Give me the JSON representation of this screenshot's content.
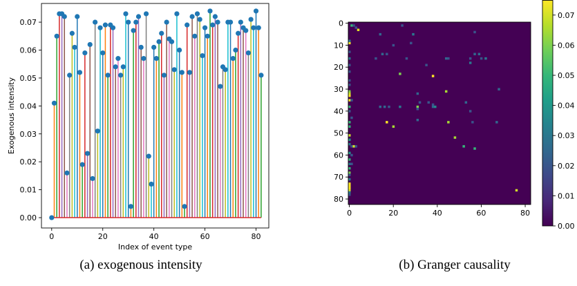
{
  "chart_data": [
    {
      "type": "stem",
      "xlabel": "Index of event type",
      "ylabel": "Exogenous intensity",
      "xlim": [
        -4,
        85
      ],
      "ylim": [
        -0.0037,
        0.0767
      ],
      "xticks": [
        0,
        20,
        40,
        60,
        80
      ],
      "yticks": [
        0.0,
        0.01,
        0.02,
        0.03,
        0.04,
        0.05,
        0.06,
        0.07
      ],
      "ytick_labels": [
        "0.00",
        "0.01",
        "0.02",
        "0.03",
        "0.04",
        "0.05",
        "0.06",
        "0.07"
      ],
      "baseline_color": "#d62728",
      "marker_color": "#1f77b4",
      "stem_colors": [
        "#1f77b4",
        "#ff7f0e",
        "#2ca02c",
        "#d62728",
        "#9467bd",
        "#8c564b",
        "#e377c2",
        "#7f7f7f",
        "#bcbd22",
        "#17becf"
      ],
      "x": [
        0,
        1,
        2,
        3,
        4,
        5,
        6,
        7,
        8,
        9,
        10,
        11,
        12,
        13,
        14,
        15,
        16,
        17,
        18,
        19,
        20,
        21,
        22,
        23,
        24,
        25,
        26,
        27,
        28,
        29,
        30,
        31,
        32,
        33,
        34,
        35,
        36,
        37,
        38,
        39,
        40,
        41,
        42,
        43,
        44,
        45,
        46,
        47,
        48,
        49,
        50,
        51,
        52,
        53,
        54,
        55,
        56,
        57,
        58,
        59,
        60,
        61,
        62,
        63,
        64,
        65,
        66,
        67,
        68,
        69,
        70,
        71,
        72,
        73,
        74,
        75,
        76,
        77,
        78,
        79,
        80,
        81,
        82
      ],
      "values": [
        0.0,
        0.041,
        0.065,
        0.073,
        0.073,
        0.072,
        0.016,
        0.051,
        0.066,
        0.061,
        0.072,
        0.052,
        0.019,
        0.059,
        0.023,
        0.062,
        0.014,
        0.07,
        0.031,
        0.068,
        0.059,
        0.069,
        0.051,
        0.069,
        0.068,
        0.054,
        0.057,
        0.051,
        0.054,
        0.073,
        0.07,
        0.004,
        0.067,
        0.07,
        0.072,
        0.061,
        0.057,
        0.073,
        0.022,
        0.012,
        0.061,
        0.057,
        0.063,
        0.066,
        0.051,
        0.07,
        0.064,
        0.063,
        0.053,
        0.073,
        0.06,
        0.052,
        0.004,
        0.069,
        0.052,
        0.072,
        0.065,
        0.073,
        0.071,
        0.058,
        0.068,
        0.065,
        0.074,
        0.069,
        0.072,
        0.07,
        0.047,
        0.054,
        0.053,
        0.07,
        0.07,
        0.057,
        0.06,
        0.066,
        0.07,
        0.068,
        0.067,
        0.059,
        0.071,
        0.068,
        0.074,
        0.068,
        0.051
      ]
    },
    {
      "type": "heatmap",
      "size": 83,
      "xticks": [
        0,
        20,
        40,
        60,
        80
      ],
      "yticks": [
        0,
        10,
        20,
        30,
        40,
        50,
        60,
        70,
        80
      ],
      "colorbar_ticks": [
        0.0,
        0.01,
        0.02,
        0.03,
        0.04,
        0.05,
        0.06,
        0.07
      ],
      "colorbar_labels": [
        "0.00",
        "0.01",
        "0.02",
        "0.03",
        "0.04",
        "0.05",
        "0.06",
        "0.07"
      ],
      "vmin": 0.0,
      "vmax": 0.075,
      "colormap": "viridis",
      "colormap_stops": [
        "#440154",
        "#482878",
        "#3e4989",
        "#31688e",
        "#26828e",
        "#1f9e89",
        "#35b779",
        "#6ece58",
        "#b5de2b",
        "#fde725"
      ],
      "default_value": 0.0,
      "cells": [
        [
          1,
          1,
          0.05
        ],
        [
          2,
          1,
          0.02
        ],
        [
          3,
          2,
          0.02
        ],
        [
          4,
          3,
          0.072
        ],
        [
          24,
          1,
          0.02
        ],
        [
          14,
          5,
          0.025
        ],
        [
          29,
          5,
          0.03
        ],
        [
          57,
          4,
          0.02
        ],
        [
          0,
          9,
          0.075
        ],
        [
          0,
          8,
          0.03
        ],
        [
          0,
          13,
          0.02
        ],
        [
          0,
          16,
          0.03
        ],
        [
          0,
          19,
          0.02
        ],
        [
          0,
          22,
          0.02
        ],
        [
          0,
          26,
          0.02
        ],
        [
          0,
          28,
          0.02
        ],
        [
          0,
          31,
          0.06
        ],
        [
          0,
          32,
          0.07
        ],
        [
          0,
          33,
          0.075
        ],
        [
          0,
          35,
          0.075
        ],
        [
          0,
          38,
          0.05
        ],
        [
          0,
          40,
          0.02
        ],
        [
          0,
          45,
          0.05
        ],
        [
          0,
          47,
          0.05
        ],
        [
          0,
          51,
          0.07
        ],
        [
          0,
          53,
          0.04
        ],
        [
          0,
          55,
          0.03
        ],
        [
          0,
          59,
          0.04
        ],
        [
          0,
          62,
          0.05
        ],
        [
          0,
          64,
          0.03
        ],
        [
          0,
          66,
          0.05
        ],
        [
          0,
          68,
          0.06
        ],
        [
          0,
          69,
          0.02
        ],
        [
          0,
          71,
          0.03
        ],
        [
          0,
          73,
          0.075
        ],
        [
          0,
          74,
          0.075
        ],
        [
          0,
          75,
          0.075
        ],
        [
          0,
          76,
          0.07
        ],
        [
          0,
          77,
          0.03
        ],
        [
          0,
          78,
          0.02
        ],
        [
          1,
          56,
          0.02
        ],
        [
          2,
          56,
          0.07
        ],
        [
          3,
          56,
          0.02
        ],
        [
          1,
          35,
          0.02
        ],
        [
          1,
          43,
          0.02
        ],
        [
          1,
          60,
          0.02
        ],
        [
          1,
          64,
          0.02
        ],
        [
          12,
          16,
          0.02
        ],
        [
          15,
          14,
          0.025
        ],
        [
          17,
          14,
          0.02
        ],
        [
          20,
          10,
          0.02
        ],
        [
          26,
          16,
          0.02
        ],
        [
          28,
          9,
          0.02
        ],
        [
          14,
          38,
          0.025
        ],
        [
          16,
          38,
          0.025
        ],
        [
          18,
          38,
          0.02
        ],
        [
          23,
          23,
          0.06
        ],
        [
          23,
          38,
          0.03
        ],
        [
          31,
          32,
          0.025
        ],
        [
          31,
          38,
          0.06
        ],
        [
          31,
          44,
          0.025
        ],
        [
          31,
          39,
          0.02
        ],
        [
          32,
          36,
          0.02
        ],
        [
          17,
          45,
          0.075
        ],
        [
          20,
          47,
          0.065
        ],
        [
          35,
          19,
          0.02
        ],
        [
          38,
          24,
          0.075
        ],
        [
          38,
          37,
          0.02
        ],
        [
          38,
          38,
          0.025
        ],
        [
          39,
          38,
          0.035
        ],
        [
          44,
          31,
          0.065
        ],
        [
          45,
          16,
          0.02
        ],
        [
          45,
          45,
          0.065
        ],
        [
          48,
          52,
          0.065
        ],
        [
          52,
          56,
          0.05
        ],
        [
          57,
          57,
          0.05
        ],
        [
          55,
          18,
          0.03
        ],
        [
          57,
          14,
          0.025
        ],
        [
          59,
          14,
          0.025
        ],
        [
          53,
          36,
          0.025
        ],
        [
          55,
          16,
          0.02
        ],
        [
          60,
          16,
          0.02
        ],
        [
          62,
          16,
          0.03
        ],
        [
          67,
          45,
          0.025
        ],
        [
          68,
          30,
          0.025
        ],
        [
          76,
          76,
          0.07
        ],
        [
          56,
          45,
          0.02
        ],
        [
          44,
          16,
          0.025
        ],
        [
          36,
          36,
          0.02
        ],
        [
          55,
          40,
          0.02
        ]
      ]
    }
  ],
  "captions": {
    "left": "(a)  exogenous intensity",
    "right": "(b)  Granger causality"
  }
}
